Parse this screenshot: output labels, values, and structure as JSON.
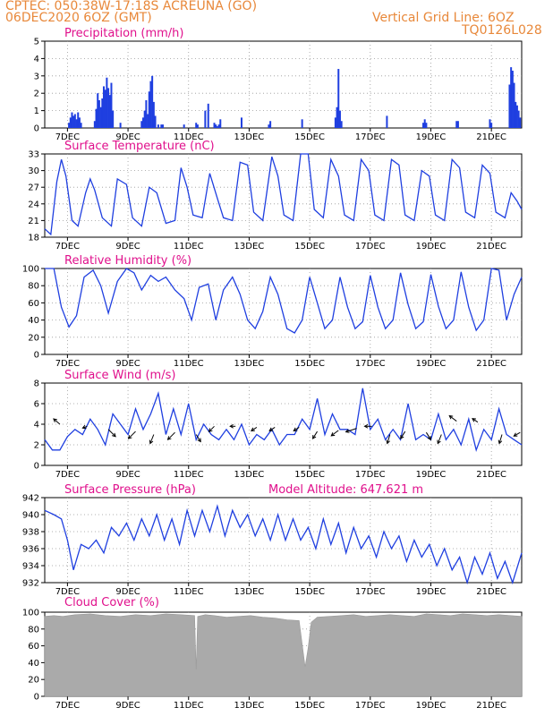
{
  "header": {
    "left1": "CPTEC:    050:38W-17:18S    ACREUNA (GO)",
    "left2": "06DEC2020 6OZ (GMT)",
    "right1": "Vertical Grid Line: 6OZ",
    "right2": "TQ0126L028"
  },
  "colors": {
    "header": "#e8883a",
    "title": "#e0108c",
    "series": "#1f3fe0",
    "cloud": "#aaaaaa"
  },
  "x_axis": {
    "min": 0,
    "max": 15.75,
    "tick_labels": [
      "7DEC",
      "9DEC",
      "11DEC",
      "13DEC",
      "15DEC",
      "17DEC",
      "19DEC",
      "21DEC"
    ]
  },
  "panels": [
    {
      "id": "precip",
      "title": "Precipitation (mm/h)",
      "chart_data": {
        "type": "bar",
        "ylim": [
          0,
          5
        ],
        "yticks": [
          0,
          1,
          2,
          3,
          4,
          5
        ],
        "x": [
          0.8,
          0.85,
          0.9,
          0.95,
          1.0,
          1.05,
          1.1,
          1.15,
          1.2,
          1.65,
          1.7,
          1.75,
          1.8,
          1.85,
          1.9,
          1.95,
          2.0,
          2.05,
          2.1,
          2.15,
          2.2,
          2.25,
          2.5,
          3.2,
          3.25,
          3.3,
          3.35,
          3.4,
          3.45,
          3.5,
          3.55,
          3.6,
          3.65,
          3.75,
          3.85,
          3.9,
          4.6,
          5.0,
          5.05,
          5.3,
          5.4,
          5.6,
          5.65,
          5.7,
          5.75,
          5.8,
          6.5,
          7.4,
          7.45,
          8.5,
          9.6,
          9.65,
          9.7,
          9.75,
          9.8,
          11.3,
          12.5,
          12.55,
          12.6,
          13.6,
          13.65,
          14.7,
          14.75,
          15.35,
          15.4,
          15.45,
          15.5,
          15.55,
          15.6,
          15.65,
          15.7
        ],
        "values": [
          0.3,
          0.6,
          0.9,
          0.7,
          0.8,
          0.5,
          0.9,
          0.6,
          0.3,
          0.4,
          1.1,
          2.0,
          1.6,
          1.2,
          1.7,
          2.4,
          2.2,
          2.9,
          2.3,
          1.9,
          2.6,
          1.0,
          0.3,
          0.4,
          0.6,
          1.0,
          1.6,
          0.8,
          2.1,
          2.7,
          3.0,
          1.5,
          0.7,
          0.2,
          0.2,
          0.2,
          0.2,
          0.3,
          0.2,
          1.0,
          1.4,
          0.3,
          0.2,
          0.1,
          0.2,
          0.5,
          0.6,
          0.2,
          0.4,
          0.5,
          0.6,
          1.2,
          3.4,
          1.0,
          0.4,
          0.7,
          0.3,
          0.5,
          0.3,
          0.4,
          0.4,
          0.5,
          0.3,
          2.5,
          3.5,
          3.3,
          2.6,
          1.5,
          1.3,
          1.0,
          0.6
        ]
      }
    },
    {
      "id": "temp",
      "title": "Surface Temperature (nC)",
      "chart_data": {
        "type": "line",
        "ylim": [
          18,
          33
        ],
        "yticks": [
          18,
          21,
          24,
          27,
          30,
          33
        ],
        "x": [
          0,
          0.2,
          0.4,
          0.55,
          0.7,
          0.9,
          1.1,
          1.35,
          1.5,
          1.65,
          1.9,
          2.2,
          2.4,
          2.7,
          2.9,
          3.2,
          3.45,
          3.7,
          4.0,
          4.3,
          4.5,
          4.7,
          4.9,
          5.2,
          5.45,
          5.7,
          5.9,
          6.2,
          6.45,
          6.7,
          6.9,
          7.2,
          7.5,
          7.7,
          7.9,
          8.2,
          8.45,
          8.7,
          8.9,
          9.2,
          9.45,
          9.7,
          9.9,
          10.2,
          10.45,
          10.7,
          10.9,
          11.2,
          11.45,
          11.7,
          11.9,
          12.2,
          12.45,
          12.7,
          12.9,
          13.2,
          13.45,
          13.7,
          13.9,
          14.2,
          14.45,
          14.7,
          14.9,
          15.2,
          15.4,
          15.6,
          15.75
        ],
        "values": [
          19.5,
          18.5,
          28.0,
          32.0,
          29.0,
          21.0,
          20.0,
          26.0,
          28.5,
          26.5,
          21.5,
          20.0,
          28.5,
          27.5,
          21.5,
          20.0,
          27.0,
          26.0,
          20.5,
          21.0,
          30.5,
          27.0,
          22.0,
          21.5,
          29.5,
          25.0,
          21.5,
          21.0,
          31.5,
          31.0,
          22.5,
          21.0,
          32.5,
          29.0,
          22.0,
          21.0,
          33.0,
          33.0,
          23.0,
          21.5,
          32.0,
          29.0,
          22.0,
          21.0,
          32.0,
          30.0,
          22.0,
          21.0,
          32.0,
          31.0,
          22.0,
          21.0,
          30.0,
          29.0,
          22.0,
          21.0,
          32.0,
          30.5,
          22.5,
          21.5,
          31.0,
          29.5,
          22.5,
          21.5,
          26.0,
          24.5,
          23.0
        ]
      }
    },
    {
      "id": "rh",
      "title": "Relative Humidity (%)",
      "chart_data": {
        "type": "line",
        "ylim": [
          0,
          100
        ],
        "yticks": [
          0,
          20,
          40,
          60,
          80,
          100
        ],
        "x": [
          0,
          0.3,
          0.55,
          0.8,
          1.05,
          1.3,
          1.6,
          1.85,
          2.1,
          2.4,
          2.7,
          2.95,
          3.2,
          3.5,
          3.75,
          4.0,
          4.3,
          4.6,
          4.85,
          5.1,
          5.4,
          5.65,
          5.9,
          6.2,
          6.45,
          6.7,
          6.95,
          7.2,
          7.45,
          7.7,
          8.0,
          8.25,
          8.5,
          8.75,
          9.0,
          9.25,
          9.5,
          9.75,
          10.0,
          10.25,
          10.5,
          10.75,
          11.0,
          11.25,
          11.5,
          11.75,
          12.0,
          12.25,
          12.5,
          12.75,
          13.0,
          13.25,
          13.5,
          13.75,
          14.0,
          14.25,
          14.5,
          14.75,
          15.0,
          15.25,
          15.5,
          15.75
        ],
        "values": [
          100,
          100,
          55,
          32,
          45,
          90,
          98,
          80,
          48,
          85,
          100,
          95,
          75,
          92,
          85,
          90,
          75,
          65,
          40,
          78,
          82,
          40,
          75,
          90,
          70,
          40,
          30,
          50,
          90,
          70,
          30,
          25,
          40,
          90,
          60,
          30,
          40,
          90,
          55,
          30,
          38,
          92,
          55,
          30,
          40,
          95,
          58,
          30,
          38,
          93,
          56,
          30,
          40,
          96,
          55,
          28,
          40,
          100,
          98,
          40,
          70,
          90
        ]
      }
    },
    {
      "id": "wind",
      "title": "Surface Wind (m/s)",
      "chart_data": {
        "type": "line",
        "ylim": [
          0,
          8
        ],
        "yticks": [
          0,
          2,
          4,
          6,
          8
        ],
        "x": [
          0,
          0.25,
          0.5,
          0.75,
          1.0,
          1.25,
          1.5,
          1.75,
          2.0,
          2.25,
          2.5,
          2.75,
          3.0,
          3.25,
          3.5,
          3.75,
          4.0,
          4.25,
          4.5,
          4.75,
          5.0,
          5.25,
          5.5,
          5.75,
          6.0,
          6.25,
          6.5,
          6.75,
          7.0,
          7.25,
          7.5,
          7.75,
          8.0,
          8.25,
          8.5,
          8.75,
          9.0,
          9.25,
          9.5,
          9.75,
          10.0,
          10.25,
          10.5,
          10.75,
          11.0,
          11.25,
          11.5,
          11.75,
          12.0,
          12.25,
          12.5,
          12.75,
          13.0,
          13.25,
          13.5,
          13.75,
          14.0,
          14.25,
          14.5,
          14.75,
          15.0,
          15.25,
          15.5,
          15.75
        ],
        "values": [
          2.5,
          1.5,
          1.5,
          2.8,
          3.5,
          3.0,
          4.5,
          3.5,
          2.0,
          5.0,
          4.0,
          3.0,
          5.5,
          3.5,
          5.0,
          7.0,
          3.0,
          5.5,
          3.0,
          6.0,
          2.5,
          4.0,
          3.0,
          2.5,
          3.5,
          2.5,
          4.0,
          2.0,
          3.0,
          2.5,
          3.5,
          2.0,
          3.0,
          3.0,
          4.5,
          3.5,
          6.5,
          3.0,
          5.0,
          3.5,
          3.5,
          3.0,
          7.5,
          3.5,
          4.5,
          2.5,
          3.5,
          2.5,
          6.0,
          2.5,
          3.0,
          2.5,
          5.0,
          2.5,
          3.5,
          2.0,
          4.5,
          1.5,
          3.5,
          2.5,
          5.5,
          3.0,
          2.5,
          2.0
        ],
        "arrows": [
          {
            "x": 0.5,
            "v": 4.0,
            "dx": -7,
            "dy": -6
          },
          {
            "x": 1.4,
            "v": 3.8,
            "dx": -5,
            "dy": 2
          },
          {
            "x": 2.1,
            "v": 3.5,
            "dx": 8,
            "dy": 8
          },
          {
            "x": 3.0,
            "v": 3.3,
            "dx": -8,
            "dy": 8
          },
          {
            "x": 3.6,
            "v": 3.0,
            "dx": -4,
            "dy": 10
          },
          {
            "x": 4.3,
            "v": 3.2,
            "dx": -8,
            "dy": 8
          },
          {
            "x": 5.0,
            "v": 3.0,
            "dx": 5,
            "dy": 8
          },
          {
            "x": 5.6,
            "v": 3.8,
            "dx": -6,
            "dy": 6
          },
          {
            "x": 6.3,
            "v": 3.8,
            "dx": -6,
            "dy": 0
          },
          {
            "x": 7.0,
            "v": 3.7,
            "dx": -6,
            "dy": 4
          },
          {
            "x": 7.6,
            "v": 3.7,
            "dx": -6,
            "dy": 4
          },
          {
            "x": 8.4,
            "v": 3.7,
            "dx": -6,
            "dy": 4
          },
          {
            "x": 9.0,
            "v": 3.3,
            "dx": -5,
            "dy": 8
          },
          {
            "x": 9.7,
            "v": 3.4,
            "dx": -8,
            "dy": 6
          },
          {
            "x": 10.3,
            "v": 3.6,
            "dx": -12,
            "dy": 4
          },
          {
            "x": 10.8,
            "v": 3.8,
            "dx": -8,
            "dy": 0
          },
          {
            "x": 11.4,
            "v": 3.0,
            "dx": -3,
            "dy": 10
          },
          {
            "x": 11.9,
            "v": 3.3,
            "dx": -5,
            "dy": 8
          },
          {
            "x": 12.6,
            "v": 3.2,
            "dx": 5,
            "dy": 8
          },
          {
            "x": 13.1,
            "v": 3.0,
            "dx": -4,
            "dy": 10
          },
          {
            "x": 13.6,
            "v": 4.3,
            "dx": -8,
            "dy": -6
          },
          {
            "x": 14.3,
            "v": 4.2,
            "dx": -6,
            "dy": -4
          },
          {
            "x": 15.1,
            "v": 3.0,
            "dx": -3,
            "dy": 10
          },
          {
            "x": 15.7,
            "v": 3.2,
            "dx": -7,
            "dy": 4
          }
        ]
      }
    },
    {
      "id": "pres",
      "title": "Surface Pressure (hPa)",
      "extra": "Model Altitude: 647.621 m",
      "chart_data": {
        "type": "line",
        "ylim": [
          932,
          942
        ],
        "yticks": [
          932,
          934,
          936,
          938,
          940,
          942
        ],
        "x": [
          0,
          0.3,
          0.55,
          0.75,
          0.95,
          1.2,
          1.45,
          1.7,
          1.95,
          2.2,
          2.45,
          2.7,
          2.95,
          3.2,
          3.45,
          3.7,
          3.95,
          4.2,
          4.45,
          4.7,
          4.95,
          5.2,
          5.45,
          5.7,
          5.95,
          6.2,
          6.45,
          6.7,
          6.95,
          7.2,
          7.45,
          7.7,
          7.95,
          8.2,
          8.45,
          8.7,
          8.95,
          9.2,
          9.45,
          9.7,
          9.95,
          10.2,
          10.45,
          10.7,
          10.95,
          11.2,
          11.45,
          11.7,
          11.95,
          12.2,
          12.45,
          12.7,
          12.95,
          13.2,
          13.45,
          13.7,
          13.95,
          14.2,
          14.45,
          14.7,
          14.95,
          15.2,
          15.45,
          15.75
        ],
        "values": [
          940.5,
          940.0,
          939.5,
          937.0,
          933.5,
          936.5,
          936.0,
          937.0,
          935.5,
          938.5,
          937.5,
          939.0,
          937.0,
          939.5,
          937.5,
          940.0,
          937.0,
          939.5,
          936.5,
          940.5,
          937.5,
          940.5,
          938.0,
          941.0,
          937.5,
          940.5,
          938.5,
          940.0,
          937.5,
          939.5,
          937.0,
          940.0,
          937.0,
          939.5,
          937.0,
          938.5,
          936.0,
          939.5,
          936.5,
          939.0,
          935.5,
          938.5,
          936.0,
          937.5,
          935.0,
          938.0,
          936.0,
          937.5,
          934.5,
          937.0,
          935.0,
          936.5,
          934.0,
          936.0,
          933.5,
          935.0,
          932.0,
          935.0,
          933.0,
          935.5,
          932.5,
          934.5,
          932.0,
          935.5
        ]
      }
    },
    {
      "id": "cloud",
      "title": "Cloud Cover (%)",
      "chart_data": {
        "type": "area",
        "ylim": [
          0,
          100
        ],
        "yticks": [
          0,
          20,
          40,
          60,
          80,
          100
        ],
        "x": [
          0,
          0.3,
          0.6,
          1.0,
          1.5,
          2.0,
          2.5,
          3.0,
          3.5,
          4.0,
          4.5,
          4.95,
          5.0,
          5.05,
          5.3,
          5.6,
          6.0,
          6.4,
          6.8,
          7.2,
          7.6,
          8.0,
          8.4,
          8.6,
          8.7,
          8.8,
          9.0,
          9.4,
          9.8,
          10.2,
          10.6,
          11.0,
          11.4,
          11.8,
          12.2,
          12.6,
          13.0,
          13.4,
          13.8,
          14.2,
          14.6,
          15.0,
          15.4,
          15.75
        ],
        "values": [
          95,
          96,
          95,
          97,
          98,
          96,
          95,
          97,
          96,
          98,
          97,
          96,
          32,
          95,
          97,
          96,
          94,
          95,
          96,
          94,
          93,
          91,
          90,
          35,
          58,
          88,
          94,
          95,
          96,
          97,
          95,
          96,
          97,
          96,
          95,
          98,
          97,
          96,
          98,
          97,
          96,
          97,
          96,
          95
        ]
      }
    }
  ]
}
